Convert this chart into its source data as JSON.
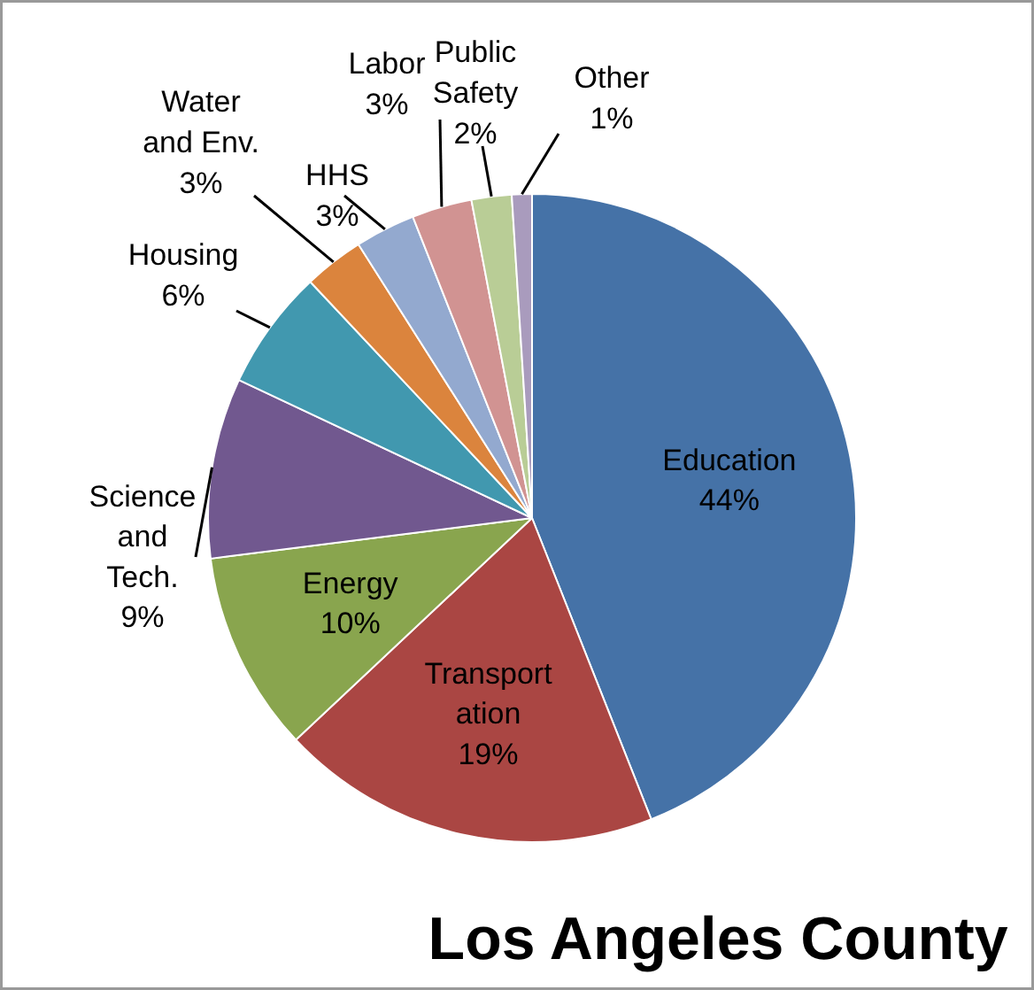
{
  "chart_data": {
    "type": "pie",
    "title": "Los Angeles County",
    "categories": [
      "Education",
      "Transport\nation",
      "Energy",
      "Science\nand\nTech.",
      "Housing",
      "Water\nand Env.",
      "HHS",
      "Labor",
      "Public\nSafety",
      "Other"
    ],
    "values": [
      44,
      19,
      10,
      9,
      6,
      3,
      3,
      3,
      2,
      1
    ],
    "colors": [
      "#4572a7",
      "#aa4643",
      "#89a54e",
      "#71588f",
      "#4198af",
      "#db843d",
      "#93a9cf",
      "#d19392",
      "#b9cd96",
      "#a99bbd"
    ],
    "value_labels": [
      "44%",
      "19%",
      "10%",
      "9%",
      "6%",
      "3%",
      "3%",
      "3%",
      "2%",
      "1%"
    ]
  }
}
